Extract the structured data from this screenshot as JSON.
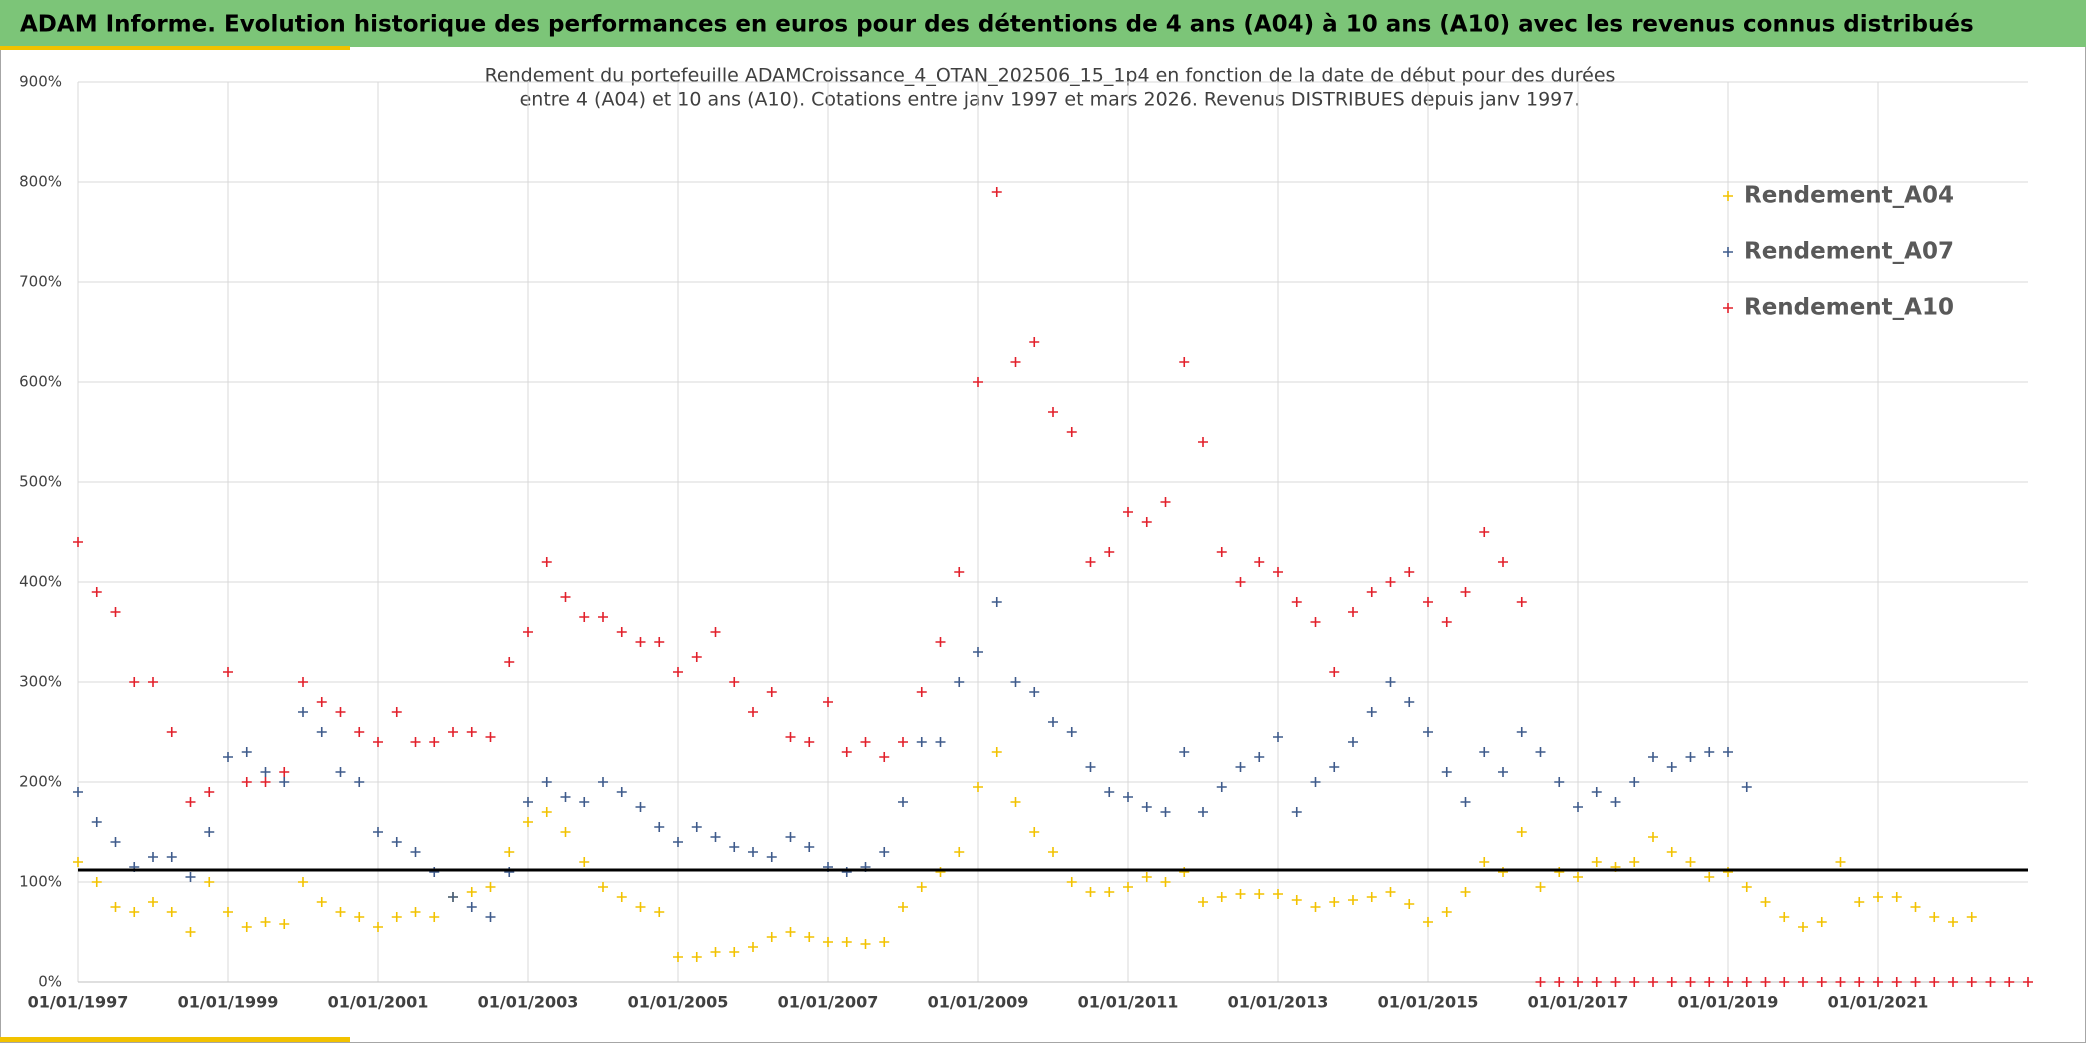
{
  "chart_data": {
    "type": "scatter",
    "title": "ADAM Informe. Evolution historique des performances en euros pour des détentions de 4 ans (A04) à 10 ans (A10) avec les revenus connus distribués",
    "subtitle": [
      "Rendement du portefeuille ADAMCroissance_4_OTAN_202506_15_1p4  en fonction de la date de début pour des durées",
      "entre 4 (A04) et 10 ans (A10). Cotations entre janv 1997 et mars 2026. Revenus DISTRIBUES depuis janv 1997."
    ],
    "xlim": [
      "1997-01-01",
      "2023-01-01"
    ],
    "xticks": [
      {
        "value": "1997-01-01",
        "label": "01/01/1997"
      },
      {
        "value": "1999-01-01",
        "label": "01/01/1999"
      },
      {
        "value": "2001-01-01",
        "label": "01/01/2001"
      },
      {
        "value": "2003-01-01",
        "label": "01/01/2003"
      },
      {
        "value": "2005-01-01",
        "label": "01/01/2005"
      },
      {
        "value": "2007-01-01",
        "label": "01/01/2007"
      },
      {
        "value": "2009-01-01",
        "label": "01/01/2009"
      },
      {
        "value": "2011-01-01",
        "label": "01/01/2011"
      },
      {
        "value": "2013-01-01",
        "label": "01/01/2013"
      },
      {
        "value": "2015-01-01",
        "label": "01/01/2015"
      },
      {
        "value": "2017-01-01",
        "label": "01/01/2017"
      },
      {
        "value": "2019-01-01",
        "label": "01/01/2019"
      },
      {
        "value": "2021-01-01",
        "label": "01/01/2021"
      }
    ],
    "ylim": [
      0,
      900
    ],
    "yticks": [
      {
        "value": 0,
        "label": "0%"
      },
      {
        "value": 100,
        "label": "100%"
      },
      {
        "value": 200,
        "label": "200%"
      },
      {
        "value": 300,
        "label": "300%"
      },
      {
        "value": 400,
        "label": "400%"
      },
      {
        "value": 500,
        "label": "500%"
      },
      {
        "value": 600,
        "label": "600%"
      },
      {
        "value": 700,
        "label": "700%"
      },
      {
        "value": 800,
        "label": "800%"
      },
      {
        "value": 900,
        "label": "900%"
      }
    ],
    "grid": true,
    "legend": "upper right",
    "reference_line": 112,
    "series": [
      {
        "name": "Rendement_A04",
        "color": "#f2c200",
        "x": [
          "1997-01-01",
          "1997-04-01",
          "1997-07-01",
          "1997-10-01",
          "1998-01-01",
          "1998-04-01",
          "1998-07-01",
          "1998-10-01",
          "1999-01-01",
          "1999-04-01",
          "1999-07-01",
          "1999-10-01",
          "2000-01-01",
          "2000-04-01",
          "2000-07-01",
          "2000-10-01",
          "2001-01-01",
          "2001-04-01",
          "2001-07-01",
          "2001-10-01",
          "2002-01-01",
          "2002-04-01",
          "2002-07-01",
          "2002-10-01",
          "2003-01-01",
          "2003-04-01",
          "2003-07-01",
          "2003-10-01",
          "2004-01-01",
          "2004-04-01",
          "2004-07-01",
          "2004-10-01",
          "2005-01-01",
          "2005-04-01",
          "2005-07-01",
          "2005-10-01",
          "2006-01-01",
          "2006-04-01",
          "2006-07-01",
          "2006-10-01",
          "2007-01-01",
          "2007-04-01",
          "2007-07-01",
          "2007-10-01",
          "2008-01-01",
          "2008-04-01",
          "2008-07-01",
          "2008-10-01",
          "2009-01-01",
          "2009-04-01",
          "2009-07-01",
          "2009-10-01",
          "2010-01-01",
          "2010-04-01",
          "2010-07-01",
          "2010-10-01",
          "2011-01-01",
          "2011-04-01",
          "2011-07-01",
          "2011-10-01",
          "2012-01-01",
          "2012-04-01",
          "2012-07-01",
          "2012-10-01",
          "2013-01-01",
          "2013-04-01",
          "2013-07-01",
          "2013-10-01",
          "2014-01-01",
          "2014-04-01",
          "2014-07-01",
          "2014-10-01",
          "2015-01-01",
          "2015-04-01",
          "2015-07-01",
          "2015-10-01",
          "2016-01-01",
          "2016-04-01",
          "2016-07-01",
          "2016-10-01",
          "2017-01-01",
          "2017-04-01",
          "2017-07-01",
          "2017-10-01",
          "2018-01-01",
          "2018-04-01",
          "2018-07-01",
          "2018-10-01",
          "2019-01-01",
          "2019-04-01",
          "2019-07-01",
          "2019-10-01",
          "2020-01-01",
          "2020-04-01",
          "2020-07-01",
          "2020-10-01",
          "2021-01-01",
          "2021-04-01",
          "2021-07-01",
          "2021-10-01",
          "2022-01-01",
          "2022-04-01"
        ],
        "values": [
          120,
          100,
          75,
          70,
          80,
          70,
          50,
          100,
          70,
          55,
          60,
          58,
          100,
          80,
          70,
          65,
          55,
          65,
          70,
          65,
          85,
          90,
          95,
          130,
          160,
          170,
          150,
          120,
          95,
          85,
          75,
          70,
          25,
          25,
          30,
          30,
          35,
          45,
          50,
          45,
          40,
          40,
          38,
          40,
          75,
          95,
          110,
          130,
          195,
          230,
          180,
          150,
          130,
          100,
          90,
          90,
          95,
          105,
          100,
          110,
          80,
          85,
          88,
          88,
          88,
          82,
          75,
          80,
          82,
          85,
          90,
          78,
          60,
          70,
          90,
          120,
          110,
          150,
          95,
          110,
          105,
          120,
          115,
          120,
          145,
          130,
          120,
          105,
          110,
          95,
          80,
          65,
          55,
          60,
          120,
          80,
          85,
          85,
          75,
          65,
          60,
          65
        ]
      },
      {
        "name": "Rendement_A07",
        "color": "#3f5b8c",
        "x": [
          "1997-01-01",
          "1997-04-01",
          "1997-07-01",
          "1997-10-01",
          "1998-01-01",
          "1998-04-01",
          "1998-07-01",
          "1998-10-01",
          "1999-01-01",
          "1999-04-01",
          "1999-07-01",
          "1999-10-01",
          "2000-01-01",
          "2000-04-01",
          "2000-07-01",
          "2000-10-01",
          "2001-01-01",
          "2001-04-01",
          "2001-07-01",
          "2001-10-01",
          "2002-01-01",
          "2002-04-01",
          "2002-07-01",
          "2002-10-01",
          "2003-01-01",
          "2003-04-01",
          "2003-07-01",
          "2003-10-01",
          "2004-01-01",
          "2004-04-01",
          "2004-07-01",
          "2004-10-01",
          "2005-01-01",
          "2005-04-01",
          "2005-07-01",
          "2005-10-01",
          "2006-01-01",
          "2006-04-01",
          "2006-07-01",
          "2006-10-01",
          "2007-01-01",
          "2007-04-01",
          "2007-07-01",
          "2007-10-01",
          "2008-01-01",
          "2008-04-01",
          "2008-07-01",
          "2008-10-01",
          "2009-01-01",
          "2009-04-01",
          "2009-07-01",
          "2009-10-01",
          "2010-01-01",
          "2010-04-01",
          "2010-07-01",
          "2010-10-01",
          "2011-01-01",
          "2011-04-01",
          "2011-07-01",
          "2011-10-01",
          "2012-01-01",
          "2012-04-01",
          "2012-07-01",
          "2012-10-01",
          "2013-01-01",
          "2013-04-01",
          "2013-07-01",
          "2013-10-01",
          "2014-01-01",
          "2014-04-01",
          "2014-07-01",
          "2014-10-01",
          "2015-01-01",
          "2015-04-01",
          "2015-07-01",
          "2015-10-01",
          "2016-01-01",
          "2016-04-01",
          "2016-07-01",
          "2016-10-01",
          "2017-01-01",
          "2017-04-01",
          "2017-07-01",
          "2017-10-01",
          "2018-01-01",
          "2018-04-01",
          "2018-07-01",
          "2018-10-01",
          "2019-01-01",
          "2019-04-01"
        ],
        "values": [
          190,
          160,
          140,
          115,
          125,
          125,
          105,
          150,
          225,
          230,
          210,
          200,
          270,
          250,
          210,
          200,
          150,
          140,
          130,
          110,
          85,
          75,
          65,
          110,
          180,
          200,
          185,
          180,
          200,
          190,
          175,
          155,
          140,
          155,
          145,
          135,
          130,
          125,
          145,
          135,
          115,
          110,
          115,
          130,
          180,
          240,
          240,
          300,
          330,
          380,
          300,
          290,
          260,
          250,
          215,
          190,
          185,
          175,
          170,
          230,
          170,
          195,
          215,
          225,
          245,
          170,
          200,
          215,
          240,
          270,
          300,
          280,
          250,
          210,
          180,
          230,
          210,
          250,
          230,
          200,
          175,
          190,
          180,
          200,
          225,
          215,
          225,
          230,
          230,
          195
        ]
      },
      {
        "name": "Rendement_A10",
        "color": "#e2202b",
        "x": [
          "1997-01-01",
          "1997-04-01",
          "1997-07-01",
          "1997-10-01",
          "1998-01-01",
          "1998-04-01",
          "1998-07-01",
          "1998-10-01",
          "1999-01-01",
          "1999-04-01",
          "1999-07-01",
          "1999-10-01",
          "2000-01-01",
          "2000-04-01",
          "2000-07-01",
          "2000-10-01",
          "2001-01-01",
          "2001-04-01",
          "2001-07-01",
          "2001-10-01",
          "2002-01-01",
          "2002-04-01",
          "2002-07-01",
          "2002-10-01",
          "2003-01-01",
          "2003-04-01",
          "2003-07-01",
          "2003-10-01",
          "2004-01-01",
          "2004-04-01",
          "2004-07-01",
          "2004-10-01",
          "2005-01-01",
          "2005-04-01",
          "2005-07-01",
          "2005-10-01",
          "2006-01-01",
          "2006-04-01",
          "2006-07-01",
          "2006-10-01",
          "2007-01-01",
          "2007-04-01",
          "2007-07-01",
          "2007-10-01",
          "2008-01-01",
          "2008-04-01",
          "2008-07-01",
          "2008-10-01",
          "2009-01-01",
          "2009-04-01",
          "2009-07-01",
          "2009-10-01",
          "2010-01-01",
          "2010-04-01",
          "2010-07-01",
          "2010-10-01",
          "2011-01-01",
          "2011-04-01",
          "2011-07-01",
          "2011-10-01",
          "2012-01-01",
          "2012-04-01",
          "2012-07-01",
          "2012-10-01",
          "2013-01-01",
          "2013-04-01",
          "2013-07-01",
          "2013-10-01",
          "2014-01-01",
          "2014-04-01",
          "2014-07-01",
          "2014-10-01",
          "2015-01-01",
          "2015-04-01",
          "2015-07-01",
          "2015-10-01",
          "2016-01-01",
          "2016-04-01",
          "2016-07-01",
          "2016-10-01",
          "2017-01-01",
          "2017-04-01",
          "2017-07-01",
          "2017-10-01",
          "2018-01-01",
          "2018-04-01",
          "2018-07-01",
          "2018-10-01",
          "2019-01-01",
          "2019-04-01",
          "2019-07-01",
          "2019-10-01",
          "2020-01-01",
          "2020-04-01",
          "2020-07-01",
          "2020-10-01",
          "2021-01-01",
          "2021-04-01",
          "2021-07-01",
          "2021-10-01",
          "2022-01-01",
          "2022-04-01",
          "2022-07-01",
          "2022-10-01",
          "2023-01-01"
        ],
        "values": [
          440,
          390,
          370,
          300,
          300,
          250,
          180,
          190,
          310,
          200,
          200,
          210,
          300,
          280,
          270,
          250,
          240,
          270,
          240,
          240,
          250,
          250,
          245,
          320,
          350,
          420,
          385,
          365,
          365,
          350,
          340,
          340,
          310,
          325,
          350,
          300,
          270,
          290,
          245,
          240,
          280,
          230,
          240,
          225,
          240,
          290,
          340,
          410,
          600,
          790,
          620,
          640,
          570,
          550,
          420,
          430,
          470,
          460,
          480,
          620,
          540,
          430,
          400,
          420,
          410,
          380,
          360,
          310,
          370,
          390,
          400,
          410,
          380,
          360,
          390,
          450,
          420,
          380,
          0,
          0,
          0,
          0,
          0,
          0,
          0,
          0,
          0,
          0,
          0,
          0,
          0,
          0,
          0,
          0,
          0,
          0,
          0,
          0,
          0,
          0,
          0,
          0,
          0,
          0,
          0
        ]
      }
    ]
  }
}
